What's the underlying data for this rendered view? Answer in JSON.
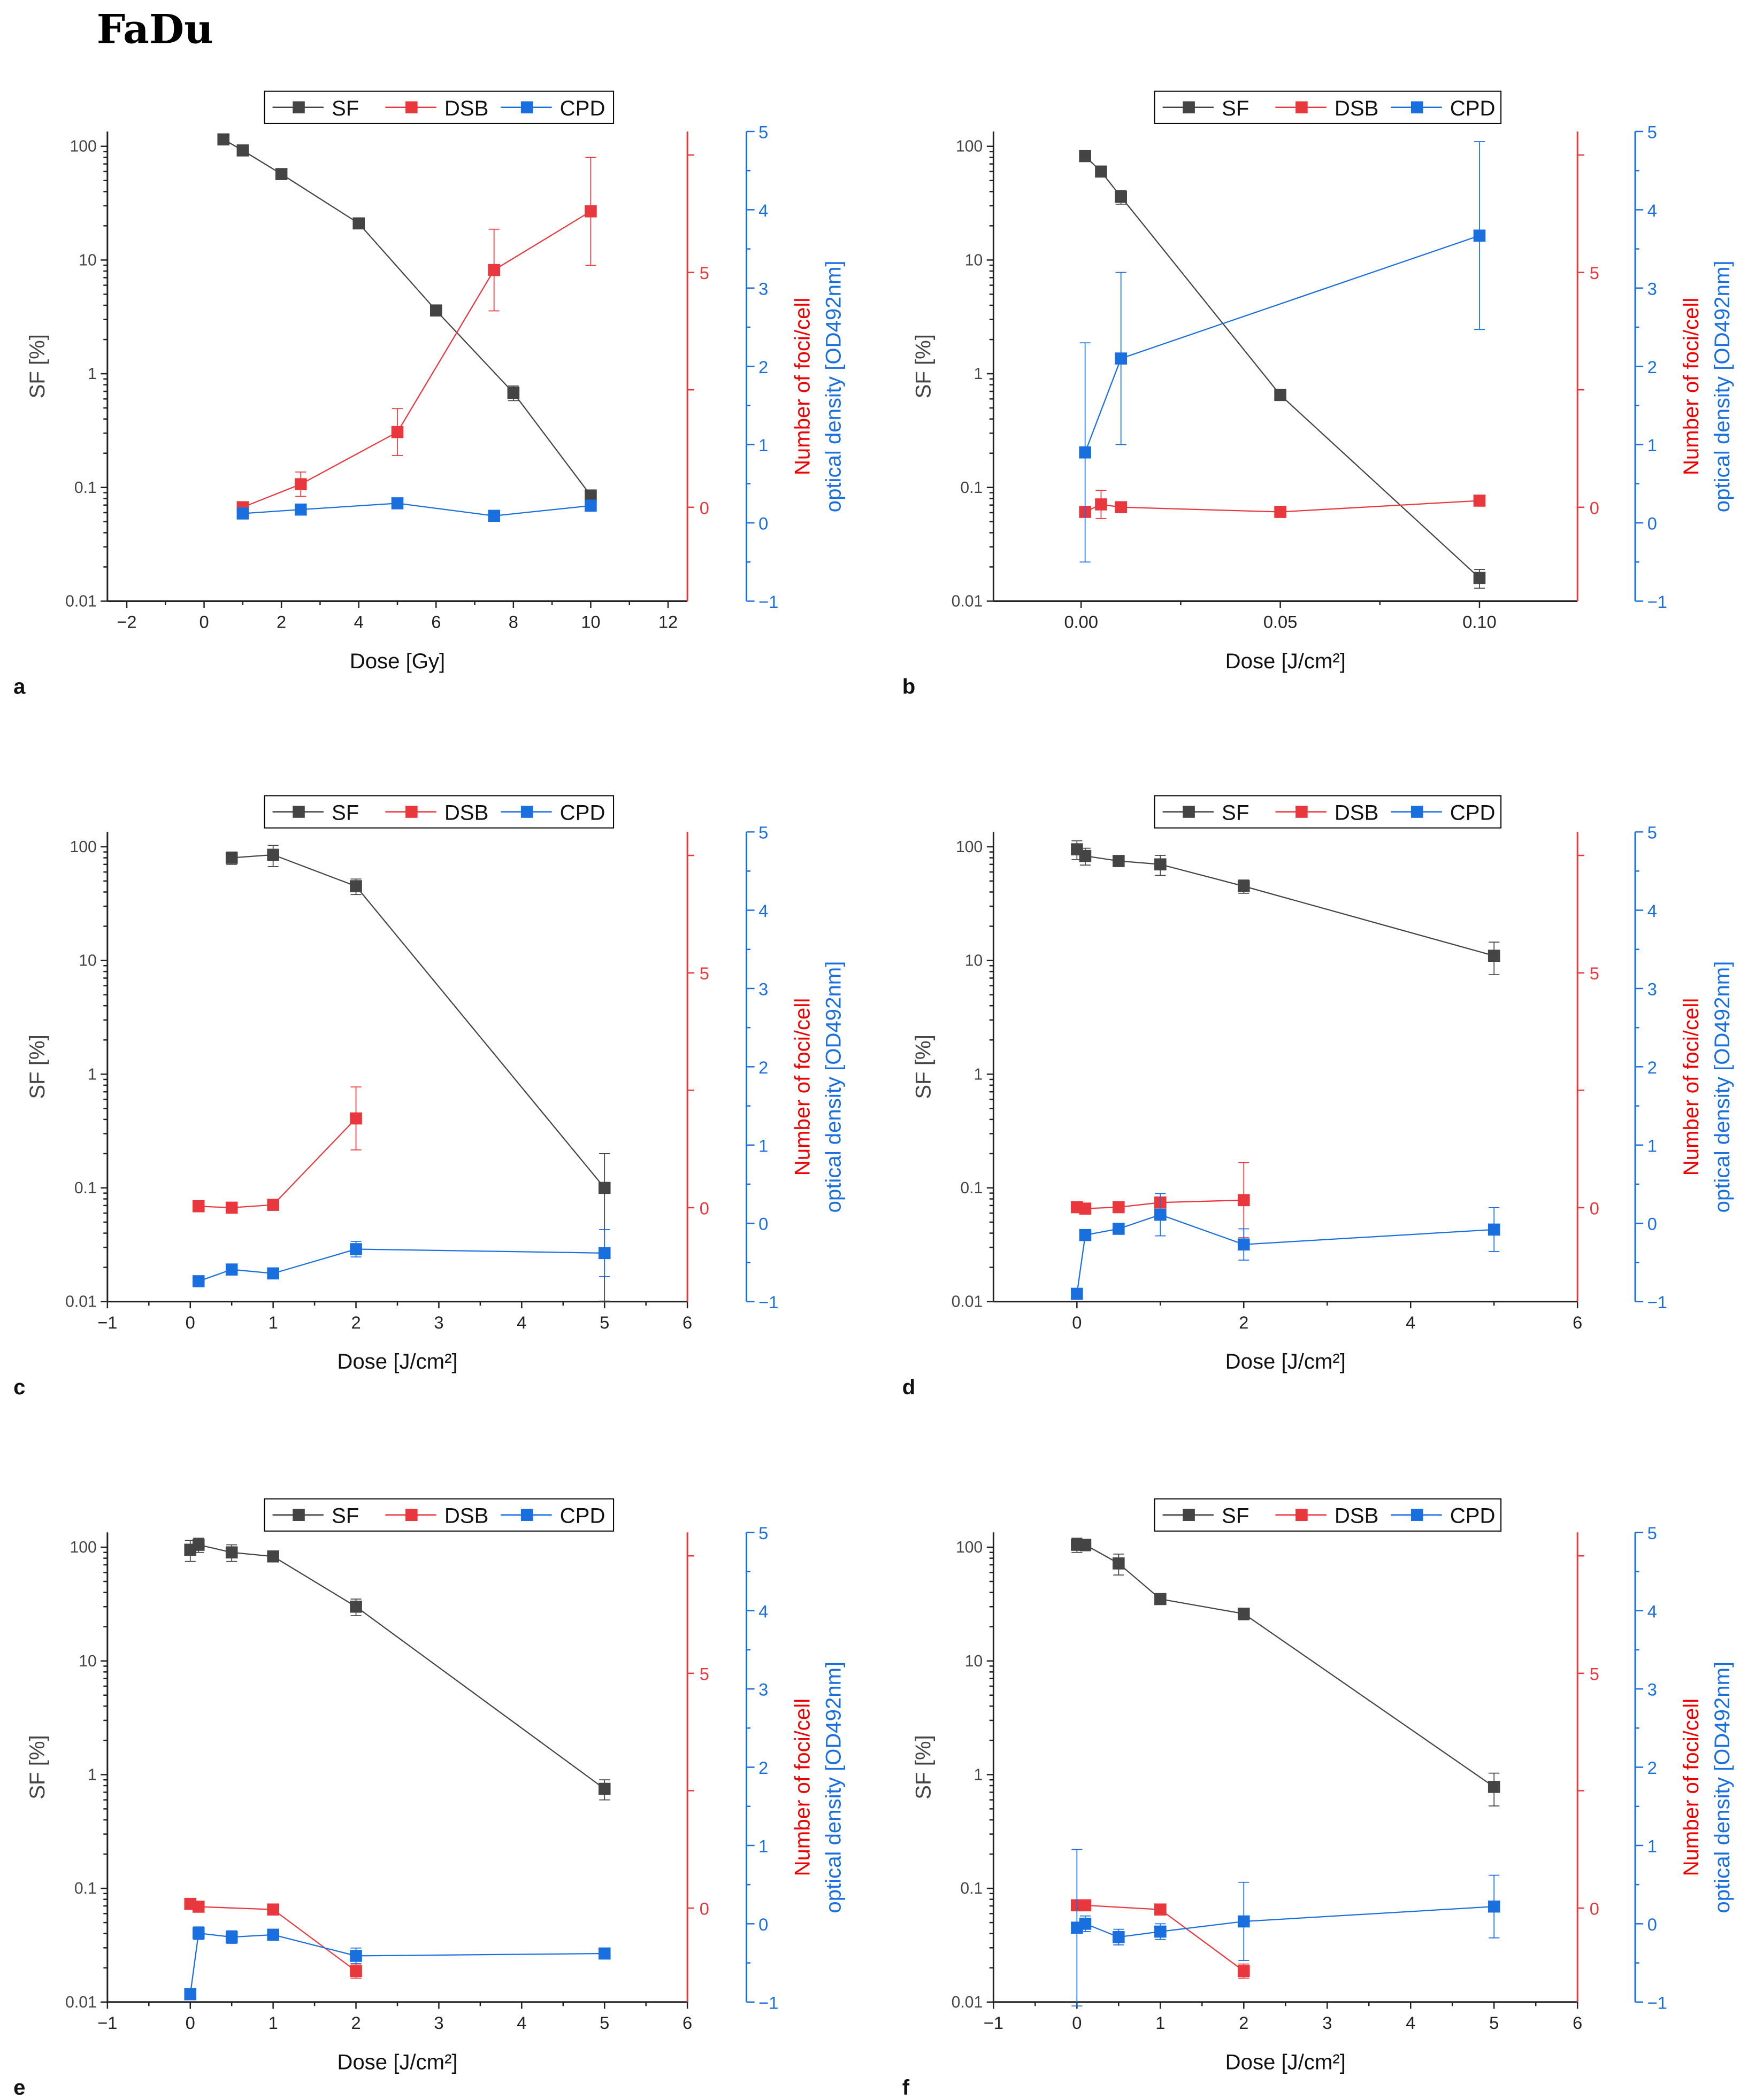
{
  "page_title": "FaDu",
  "colors": {
    "SF": "#444444",
    "DSB": "#e8383d",
    "CPD": "#1a6fdf"
  },
  "chart_data": [
    {
      "type": "line",
      "panel": "a",
      "xlabel": "Dose [Gy]",
      "xlim": [
        -2.5,
        12.5
      ],
      "xticks": [
        -2,
        0,
        2,
        4,
        6,
        8,
        10,
        12
      ],
      "xtick_labels": [
        "−2",
        "0",
        "2",
        "4",
        "6",
        "8",
        "10",
        "12"
      ],
      "ylabel": "SF [%]",
      "yscale": "log",
      "ylim": [
        0.01,
        135
      ],
      "yticks": [
        0.01,
        0.1,
        1,
        10,
        100
      ],
      "ytick_labels": [
        "0.01",
        "0.1",
        "1",
        "10",
        "100"
      ],
      "y2label": "Number of foci/cell",
      "y2lim": [
        -2,
        8
      ],
      "y2ticks": [
        0,
        5
      ],
      "y2tick_labels": [
        "0",
        "5"
      ],
      "y3label": "optical density [OD492nm]",
      "y3lim": [
        -1,
        5
      ],
      "y3ticks": [
        -1,
        0,
        1,
        2,
        3,
        4,
        5
      ],
      "y3tick_labels": [
        "−1",
        "0",
        "1",
        "2",
        "3",
        "4",
        "5"
      ],
      "legend": [
        "SF",
        "DSB",
        "CPD"
      ],
      "series": [
        {
          "name": "SF",
          "axis": "left",
          "x": [
            0.5,
            1,
            2,
            4,
            6,
            8,
            10
          ],
          "y": [
            115,
            92,
            57,
            21,
            3.6,
            0.68,
            0.085
          ],
          "yerr": [
            0,
            0,
            0,
            0,
            0,
            0.1,
            0
          ]
        },
        {
          "name": "DSB",
          "axis": "right",
          "x": [
            1,
            2.5,
            5,
            7.5,
            10
          ],
          "y": [
            0,
            0.49,
            1.6,
            5.05,
            6.3
          ],
          "yerr": [
            0,
            0.26,
            0.5,
            0.87,
            1.15
          ]
        },
        {
          "name": "CPD",
          "axis": "right2",
          "x": [
            1,
            2.5,
            5,
            7.5,
            10
          ],
          "y": [
            0.12,
            0.17,
            0.25,
            0.09,
            0.22
          ],
          "yerr": [
            0,
            0,
            0,
            0,
            0
          ]
        }
      ]
    },
    {
      "type": "line",
      "panel": "b",
      "xlabel": "Dose [J/cm²]",
      "xlim": [
        -0.022,
        0.1246
      ],
      "xticks": [
        0,
        0.05,
        0.1
      ],
      "xtick_labels": [
        "0.00",
        "0.05",
        "0.10"
      ],
      "ylabel": "SF [%]",
      "yscale": "log",
      "ylim": [
        0.01,
        135
      ],
      "yticks": [
        0.01,
        0.1,
        1,
        10,
        100
      ],
      "ytick_labels": [
        "0.01",
        "0.1",
        "1",
        "10",
        "100"
      ],
      "y2label": "Number of foci/cell",
      "y2lim": [
        -2,
        8
      ],
      "y2ticks": [
        0,
        5
      ],
      "y2tick_labels": [
        "0",
        "5"
      ],
      "y3label": "optical density [OD492nm]",
      "y3lim": [
        -1,
        5
      ],
      "y3ticks": [
        -1,
        0,
        1,
        2,
        3,
        4,
        5
      ],
      "y3tick_labels": [
        "−1",
        "0",
        "1",
        "2",
        "3",
        "4",
        "5"
      ],
      "legend": [
        "SF",
        "DSB",
        "CPD"
      ],
      "series": [
        {
          "name": "SF",
          "axis": "left",
          "x": [
            0.001,
            0.005,
            0.01,
            0.05,
            0.1
          ],
          "y": [
            82,
            60,
            36,
            0.65,
            0.016
          ],
          "yerr": [
            0,
            6,
            5,
            0,
            0.003
          ]
        },
        {
          "name": "DSB",
          "axis": "right",
          "x": [
            0.001,
            0.005,
            0.01,
            0.05,
            0.1
          ],
          "y": [
            -0.1,
            0.06,
            0,
            -0.1,
            0.14
          ],
          "yerr": [
            0,
            0.3,
            0,
            0,
            0
          ]
        },
        {
          "name": "CPD",
          "axis": "right2",
          "x": [
            0.001,
            0.01,
            0.1
          ],
          "y": [
            0.9,
            2.1,
            3.67
          ],
          "yerr": [
            1.4,
            1.1,
            1.2
          ]
        }
      ]
    },
    {
      "type": "line",
      "panel": "c",
      "xlabel": "Dose [J/cm²]",
      "xlim": [
        -1,
        6
      ],
      "xticks": [
        -1,
        0,
        1,
        2,
        3,
        4,
        5,
        6
      ],
      "xtick_labels": [
        "−1",
        "0",
        "1",
        "2",
        "3",
        "4",
        "5",
        "6"
      ],
      "ylabel": "SF [%]",
      "yscale": "log",
      "ylim": [
        0.01,
        135
      ],
      "yticks": [
        0.01,
        0.1,
        1,
        10,
        100
      ],
      "ytick_labels": [
        "0.01",
        "0.1",
        "1",
        "10",
        "100"
      ],
      "y2label": "Number of foci/cell",
      "y2lim": [
        -2,
        8
      ],
      "y2ticks": [
        0,
        5
      ],
      "y2tick_labels": [
        "0",
        "5"
      ],
      "y3label": "optical density [OD492nm]",
      "y3lim": [
        -1,
        5
      ],
      "y3ticks": [
        -1,
        0,
        1,
        2,
        3,
        4,
        5
      ],
      "y3tick_labels": [
        "−1",
        "0",
        "1",
        "2",
        "3",
        "4",
        "5"
      ],
      "legend": [
        "SF",
        "DSB",
        "CPD"
      ],
      "series": [
        {
          "name": "SF",
          "axis": "left",
          "x": [
            0.5,
            1,
            2,
            5
          ],
          "y": [
            80,
            85,
            45,
            0.1
          ],
          "yerr": [
            10,
            18,
            7,
            0.1
          ]
        },
        {
          "name": "DSB",
          "axis": "right",
          "x": [
            0.1,
            0.5,
            1,
            2
          ],
          "y": [
            0.03,
            0,
            0.06,
            1.9
          ],
          "yerr": [
            0,
            0,
            0,
            0.67
          ]
        },
        {
          "name": "CPD",
          "axis": "right2",
          "x": [
            0.1,
            0.5,
            1,
            2,
            5
          ],
          "y": [
            -0.74,
            -0.59,
            -0.64,
            -0.33,
            -0.38
          ],
          "yerr": [
            0.07,
            0.07,
            0.04,
            0.1,
            0.3
          ]
        }
      ]
    },
    {
      "type": "line",
      "panel": "d",
      "xlabel": "Dose [J/cm²]",
      "xlim": [
        -1,
        6
      ],
      "xticks": [
        0,
        2,
        4,
        6
      ],
      "xtick_labels": [
        "0",
        "2",
        "4",
        "6"
      ],
      "ylabel": "SF [%]",
      "yscale": "log",
      "ylim": [
        0.01,
        135
      ],
      "yticks": [
        0.01,
        0.1,
        1,
        10,
        100
      ],
      "ytick_labels": [
        "0.01",
        "0.1",
        "1",
        "10",
        "100"
      ],
      "y2label": "Number of foci/cell",
      "y2lim": [
        -2,
        8
      ],
      "y2ticks": [
        0,
        5
      ],
      "y2tick_labels": [
        "0",
        "5"
      ],
      "y3label": "optical density [OD492nm]",
      "y3lim": [
        -1,
        5
      ],
      "y3ticks": [
        -1,
        0,
        1,
        2,
        3,
        4,
        5
      ],
      "y3tick_labels": [
        "−1",
        "0",
        "1",
        "2",
        "3",
        "4",
        "5"
      ],
      "legend": [
        "SF",
        "DSB",
        "CPD"
      ],
      "series": [
        {
          "name": "SF",
          "axis": "left",
          "x": [
            0,
            0.1,
            0.5,
            1,
            2,
            5
          ],
          "y": [
            95,
            83,
            75,
            70,
            45,
            11
          ],
          "yerr": [
            18,
            14,
            8,
            14,
            6,
            3.5
          ]
        },
        {
          "name": "DSB",
          "axis": "right",
          "x": [
            0,
            0.1,
            0.5,
            1,
            2
          ],
          "y": [
            0.01,
            -0.02,
            0.01,
            0.11,
            0.16
          ],
          "yerr": [
            0,
            0,
            0,
            0.1,
            0.8
          ]
        },
        {
          "name": "CPD",
          "axis": "right2",
          "x": [
            0,
            0.1,
            0.5,
            1,
            2,
            5
          ],
          "y": [
            -0.9,
            -0.15,
            -0.07,
            0.11,
            -0.27,
            -0.08
          ],
          "yerr": [
            0,
            0,
            0.03,
            0.27,
            0.2,
            0.28
          ]
        }
      ]
    },
    {
      "type": "line",
      "panel": "e",
      "xlabel": "Dose [J/cm²]",
      "xlim": [
        -1,
        6
      ],
      "xticks": [
        -1,
        0,
        1,
        2,
        3,
        4,
        5,
        6
      ],
      "xtick_labels": [
        "−1",
        "0",
        "1",
        "2",
        "3",
        "4",
        "5",
        "6"
      ],
      "ylabel": "SF [%]",
      "yscale": "log",
      "ylim": [
        0.01,
        135
      ],
      "yticks": [
        0.01,
        0.1,
        1,
        10,
        100
      ],
      "ytick_labels": [
        "0.01",
        "0.1",
        "1",
        "10",
        "100"
      ],
      "y2label": "Number of foci/cell",
      "y2lim": [
        -2,
        8
      ],
      "y2ticks": [
        0,
        5
      ],
      "y2tick_labels": [
        "0",
        "5"
      ],
      "y3label": "optical density [OD492nm]",
      "y3lim": [
        -1,
        5
      ],
      "y3ticks": [
        -1,
        0,
        1,
        2,
        3,
        4,
        5
      ],
      "y3tick_labels": [
        "−1",
        "0",
        "1",
        "2",
        "3",
        "4",
        "5"
      ],
      "legend": [
        "SF",
        "DSB",
        "CPD"
      ],
      "series": [
        {
          "name": "SF",
          "axis": "left",
          "x": [
            0,
            0.1,
            0.5,
            1,
            2,
            5
          ],
          "y": [
            95,
            105,
            90,
            83,
            30,
            0.75
          ],
          "yerr": [
            20,
            15,
            15,
            5,
            5,
            0.15
          ]
        },
        {
          "name": "DSB",
          "axis": "right",
          "x": [
            0,
            0.1,
            1,
            2
          ],
          "y": [
            0.09,
            0.03,
            -0.03,
            -1.34
          ],
          "yerr": [
            0,
            0,
            0,
            0.15
          ]
        },
        {
          "name": "CPD",
          "axis": "right2",
          "x": [
            0,
            0.1,
            0.5,
            1,
            2,
            5
          ],
          "y": [
            -0.9,
            -0.12,
            -0.17,
            -0.14,
            -0.41,
            -0.38
          ],
          "yerr": [
            0,
            0.08,
            0.08,
            0.05,
            0.1,
            0.07
          ]
        }
      ]
    },
    {
      "type": "line",
      "panel": "f",
      "xlabel": "Dose [J/cm²]",
      "xlim": [
        -1,
        6
      ],
      "xticks": [
        -1,
        0,
        1,
        2,
        3,
        4,
        5,
        6
      ],
      "xtick_labels": [
        "−1",
        "0",
        "1",
        "2",
        "3",
        "4",
        "5",
        "6"
      ],
      "ylabel": "SF [%]",
      "yscale": "log",
      "ylim": [
        0.01,
        135
      ],
      "yticks": [
        0.01,
        0.1,
        1,
        10,
        100
      ],
      "ytick_labels": [
        "0.01",
        "0.1",
        "1",
        "10",
        "100"
      ],
      "y2label": "Number of foci/cell",
      "y2lim": [
        -2,
        8
      ],
      "y2ticks": [
        0,
        5
      ],
      "y2tick_labels": [
        "0",
        "5"
      ],
      "y3label": "optical density [OD492nm]",
      "y3lim": [
        -1,
        5
      ],
      "y3ticks": [
        -1,
        0,
        1,
        2,
        3,
        4,
        5
      ],
      "y3tick_labels": [
        "−1",
        "0",
        "1",
        "2",
        "3",
        "4",
        "5"
      ],
      "legend": [
        "SF",
        "DSB",
        "CPD"
      ],
      "series": [
        {
          "name": "SF",
          "axis": "left",
          "x": [
            0,
            0.1,
            0.5,
            1,
            2,
            5
          ],
          "y": [
            105,
            105,
            72,
            35,
            26,
            0.78
          ],
          "yerr": [
            15,
            12,
            15,
            3,
            3,
            0.25
          ]
        },
        {
          "name": "DSB",
          "axis": "right",
          "x": [
            0,
            0.1,
            1,
            2
          ],
          "y": [
            0.06,
            0.06,
            -0.03,
            -1.34
          ],
          "yerr": [
            0,
            0,
            0,
            0.15
          ]
        },
        {
          "name": "CPD",
          "axis": "right2",
          "x": [
            0,
            0.1,
            0.5,
            1,
            2,
            5
          ],
          "y": [
            -0.05,
            0,
            -0.17,
            -0.1,
            0.03,
            0.22
          ],
          "yerr": [
            1.0,
            0.1,
            0.1,
            0.1,
            0.5,
            0.4
          ]
        }
      ]
    }
  ]
}
